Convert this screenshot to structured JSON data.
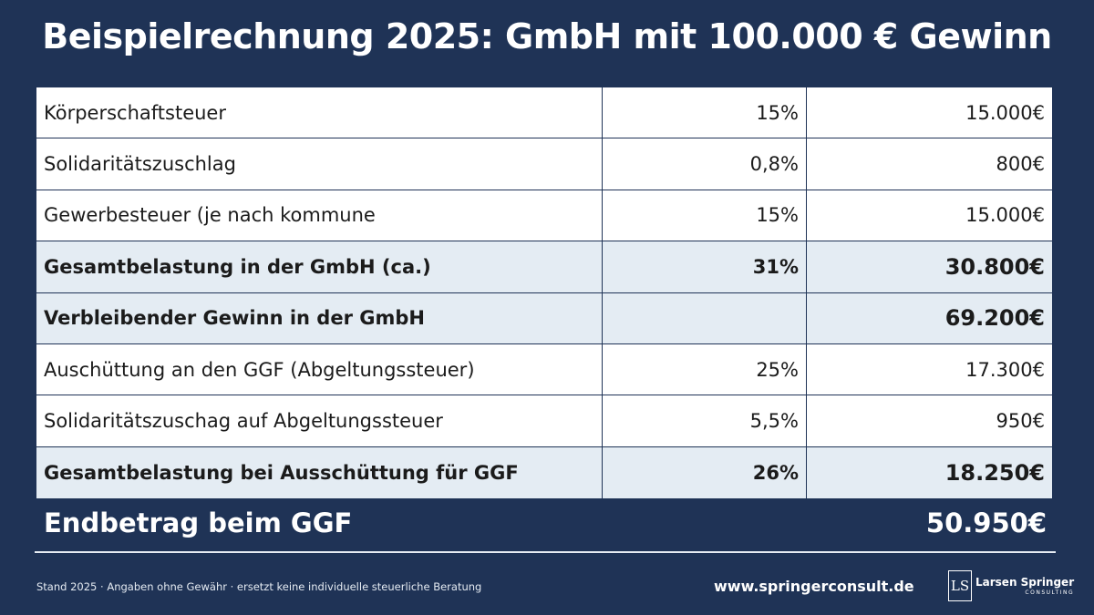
{
  "title": "Beispielrechnung 2025: GmbH mit 100.000 € Gewinn",
  "rows": [
    {
      "label": "Körperschaftsteuer",
      "rate": "15%",
      "amount": "15.000€"
    },
    {
      "label": "Solidaritätszuschlag",
      "rate": "0,8%",
      "amount": "800€"
    },
    {
      "label": "Gewerbesteuer (je nach kommune",
      "rate": "15%",
      "amount": "15.000€"
    },
    {
      "label": "Gesamtbelastung in der GmbH (ca.)",
      "rate": "31%",
      "amount": "30.800€"
    },
    {
      "label": "Verbleibender Gewinn in der GmbH",
      "rate": "",
      "amount": "69.200€"
    },
    {
      "label": "Auschüttung an den GGF (Abgeltungssteuer)",
      "rate": "25%",
      "amount": "17.300€"
    },
    {
      "label": "Solidaritätszuschag auf Abgeltungssteuer",
      "rate": "5,5%",
      "amount": "950€"
    },
    {
      "label": "Gesamtbelastung bei Ausschüttung für GGF",
      "rate": "26%",
      "amount": "18.250€"
    }
  ],
  "total": {
    "label": "Endbetrag beim GGF",
    "amount": "50.950€"
  },
  "footer": {
    "note": "Stand 2025 · Angaben ohne Gewähr · ersetzt keine individuelle steuerliche Beratung",
    "website": "www.springerconsult.de",
    "logo_mark": "LS",
    "logo_name": "Larsen Springer",
    "logo_sub": "CONSULTING"
  },
  "colors": {
    "background": "#1f3356",
    "highlight_row": "#e4ecf3",
    "table": "#ffffff"
  }
}
